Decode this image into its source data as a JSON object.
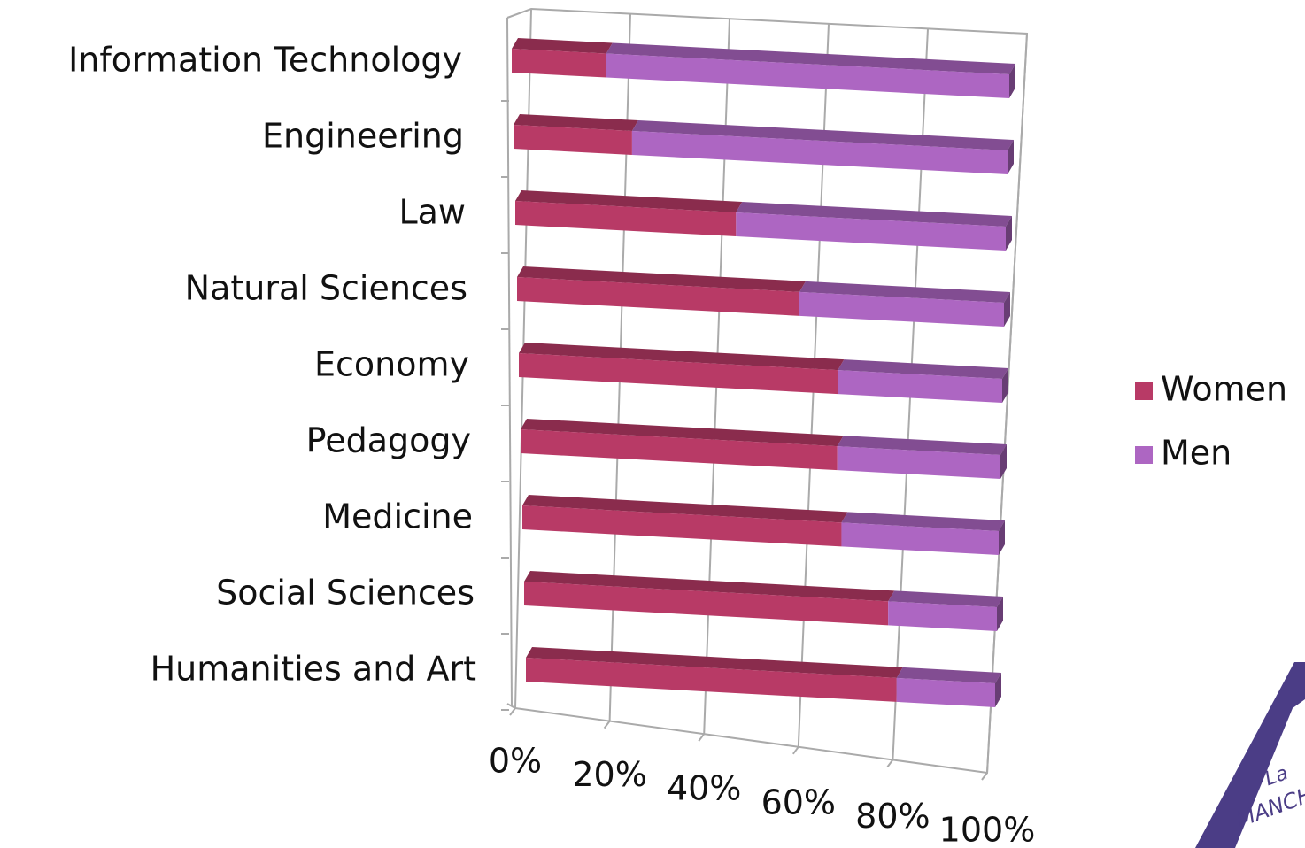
{
  "chart_data": {
    "type": "bar3d_stacked_horizontal",
    "categories": [
      "Information Technology",
      "Engineering",
      "Law",
      "Natural Sciences",
      "Economy",
      "Pedagogy",
      "Medicine",
      "Social Sciences",
      "Humanities and Art"
    ],
    "series": [
      {
        "name": "Women",
        "color": "#b83a66",
        "values": [
          19,
          24,
          45,
          58,
          66,
          66,
          67,
          77,
          79
        ]
      },
      {
        "name": "Men",
        "color": "#ad66c2",
        "values": [
          81,
          76,
          55,
          42,
          34,
          34,
          33,
          23,
          21
        ]
      }
    ],
    "xlim": [
      0,
      100
    ],
    "xticks": [
      {
        "value": 0,
        "label": "0%"
      },
      {
        "value": 20,
        "label": "20%"
      },
      {
        "value": 40,
        "label": "40%"
      },
      {
        "value": 60,
        "label": "60%"
      },
      {
        "value": 80,
        "label": "80%"
      },
      {
        "value": 100,
        "label": "100%"
      }
    ],
    "grid": true,
    "legend": "right"
  },
  "logo": {
    "line1": "La",
    "line2": "MANCH"
  }
}
